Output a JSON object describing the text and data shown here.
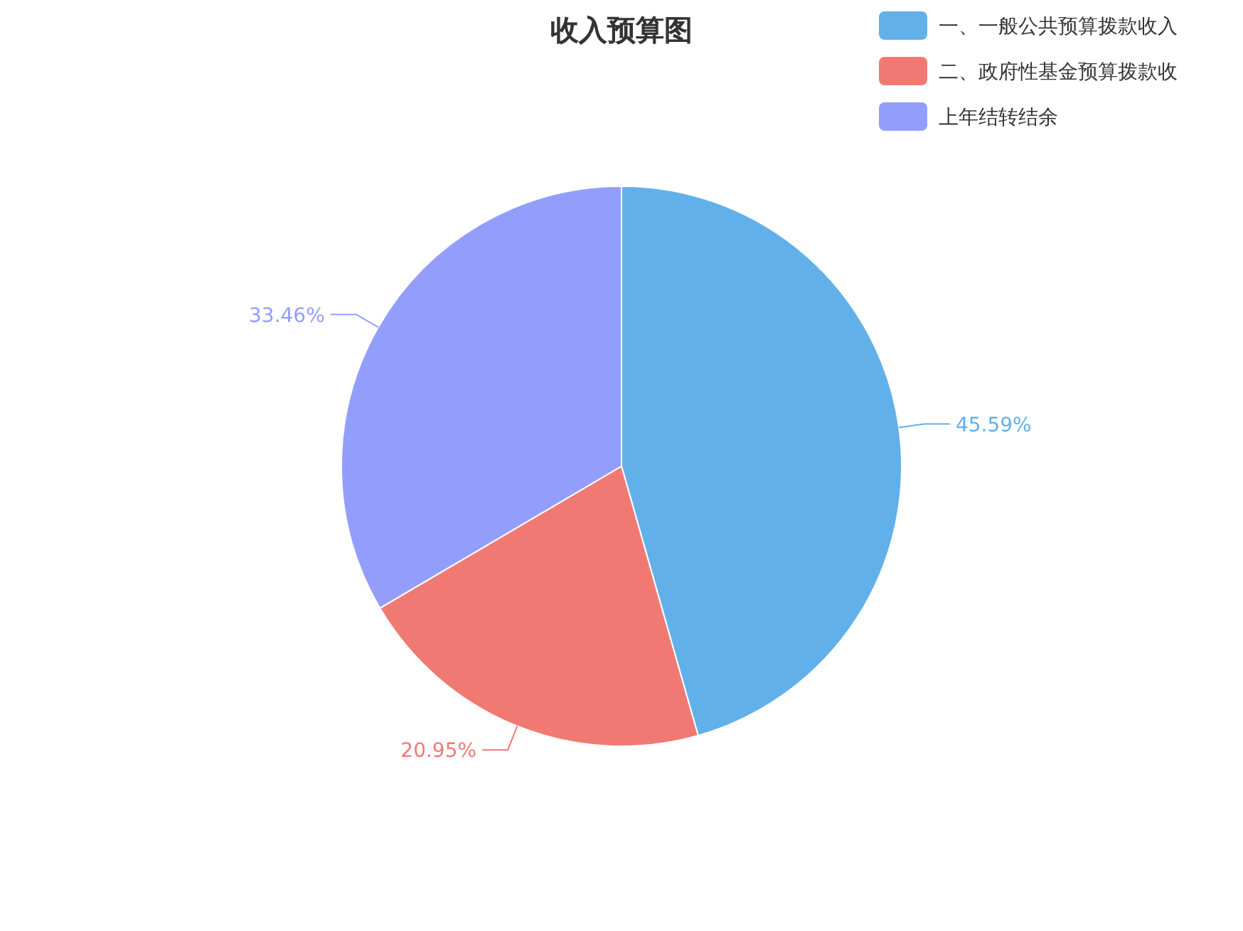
{
  "chart_data": {
    "type": "pie",
    "title": "收入预算图",
    "categories": [
      "一、一般公共预算拨款收入",
      "二、政府性基金预算拨款收",
      "上年结转结余"
    ],
    "values": [
      45.59,
      20.95,
      33.46
    ],
    "colors": [
      "#62b0ea",
      "#f07a73",
      "#939efc"
    ],
    "value_labels": [
      "45.59%",
      "20.95%",
      "33.46%"
    ],
    "legend": "top right"
  }
}
